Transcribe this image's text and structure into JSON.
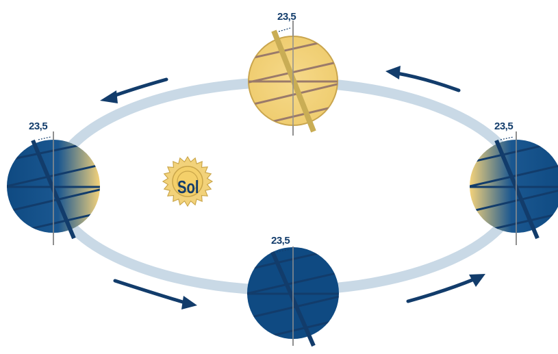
{
  "sun": {
    "label": "Sol"
  },
  "tilt_angle_label": "23,5",
  "earths": [
    {
      "id": "top",
      "tilt_label": "23,5",
      "lit": "full"
    },
    {
      "id": "left",
      "tilt_label": "23,5",
      "lit": "right-half"
    },
    {
      "id": "right",
      "tilt_label": "23,5",
      "lit": "left-half"
    },
    {
      "id": "bottom",
      "tilt_label": "23,5",
      "lit": "none"
    }
  ],
  "colors": {
    "orbit": "#c9d9e6",
    "arrow": "#123c6b",
    "day": "#f2d27a",
    "night": "#0f4a82",
    "grid_lines": "#7a5a6a",
    "text": "#123c6b"
  }
}
